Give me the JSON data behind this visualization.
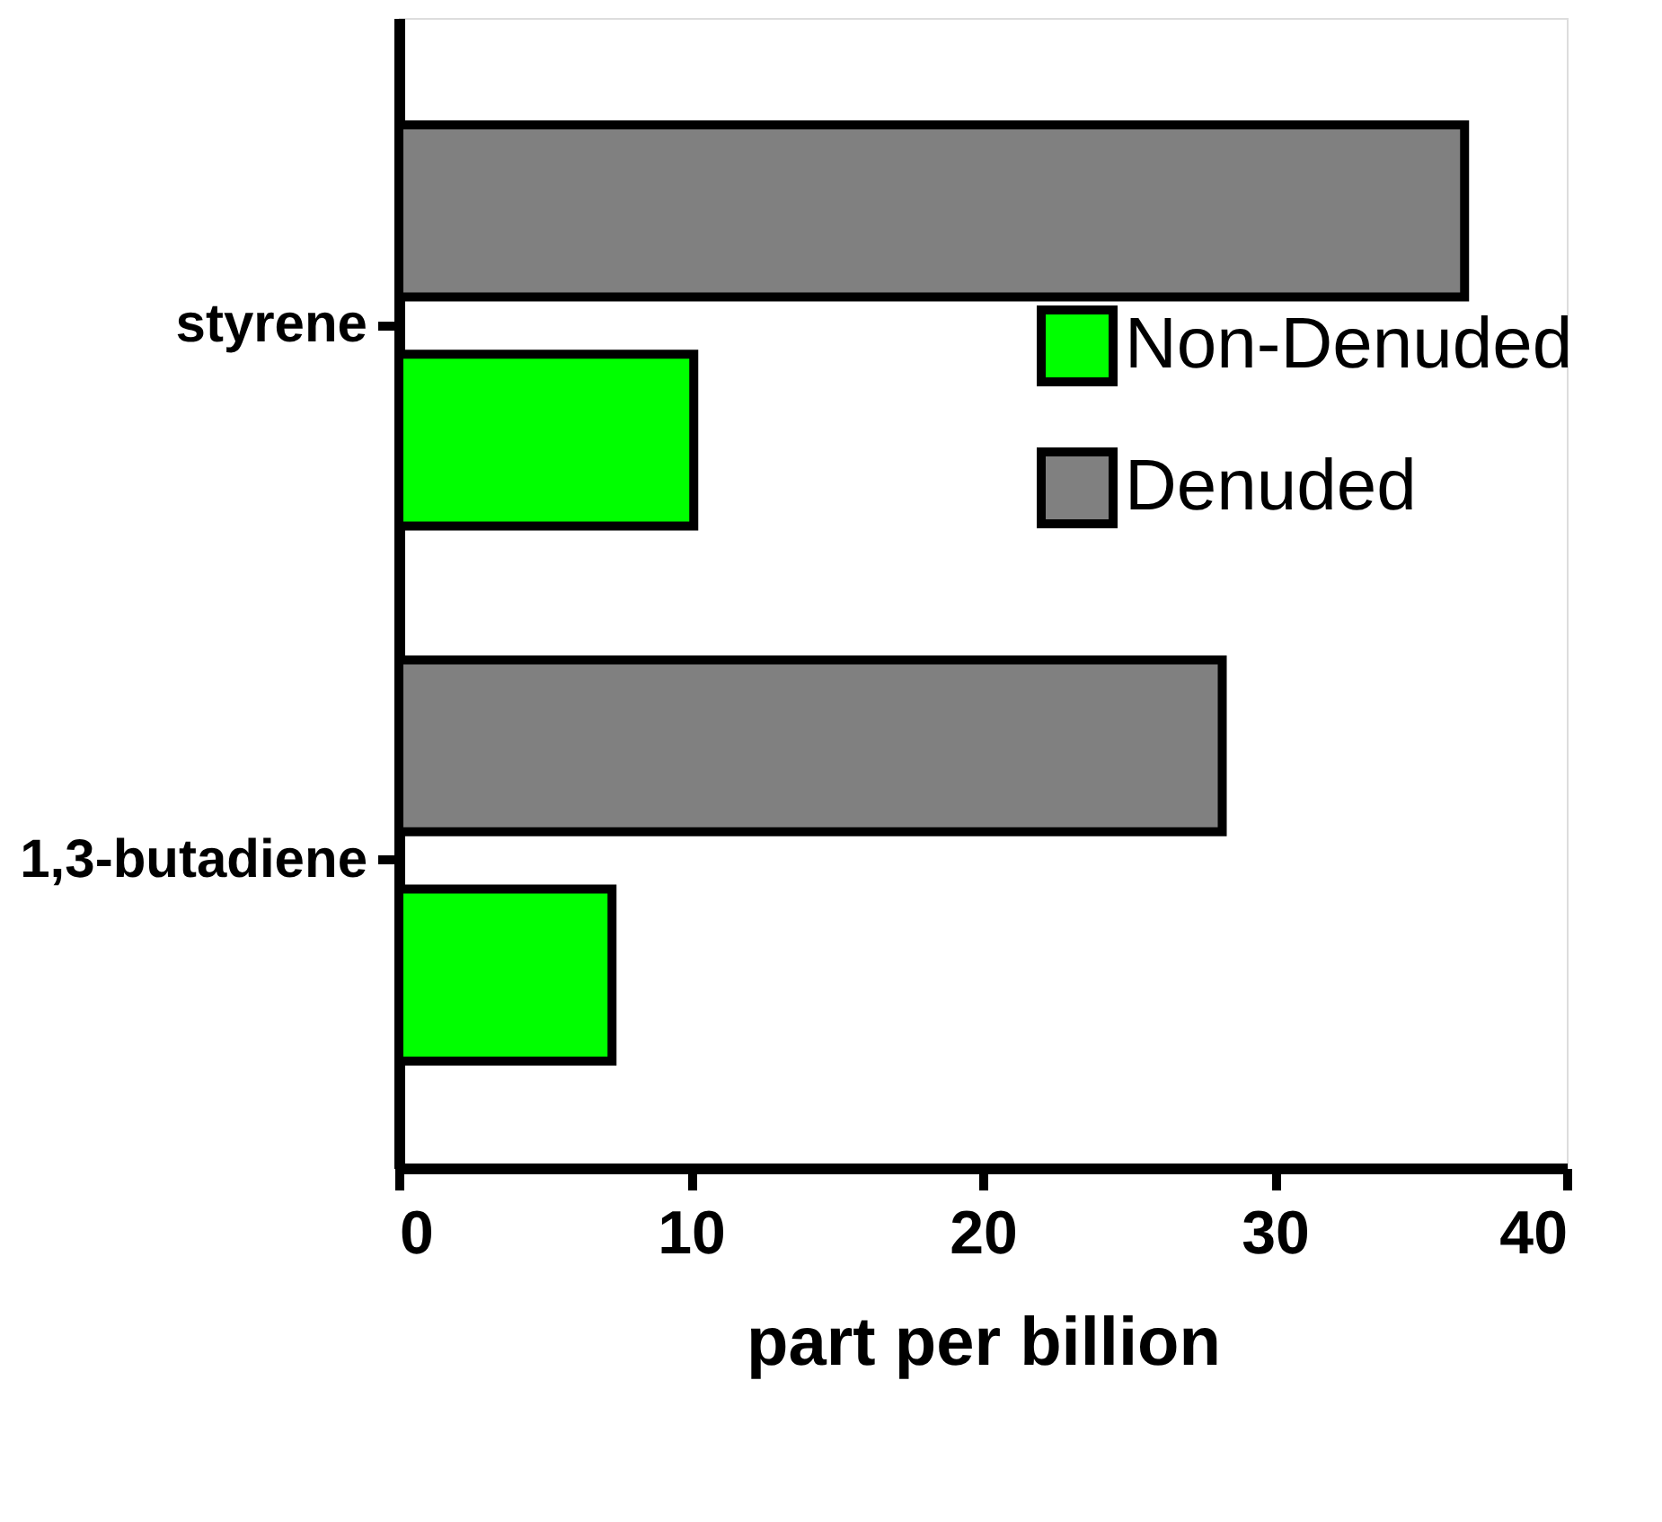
{
  "chart_data": {
    "type": "bar",
    "orientation": "horizontal",
    "xlabel": "part per billion",
    "categories": [
      "styrene",
      "1,3-butadiene"
    ],
    "series": [
      {
        "name": "Non-Denuded",
        "color": "#00ff00",
        "values": [
          10.1,
          7.3
        ]
      },
      {
        "name": "Denuded",
        "color": "#808080",
        "values": [
          36.5,
          28.2
        ]
      }
    ],
    "xlim": [
      0,
      40
    ],
    "xticks": [
      0,
      10,
      20,
      30,
      40
    ],
    "grid": false,
    "legend": "right"
  }
}
